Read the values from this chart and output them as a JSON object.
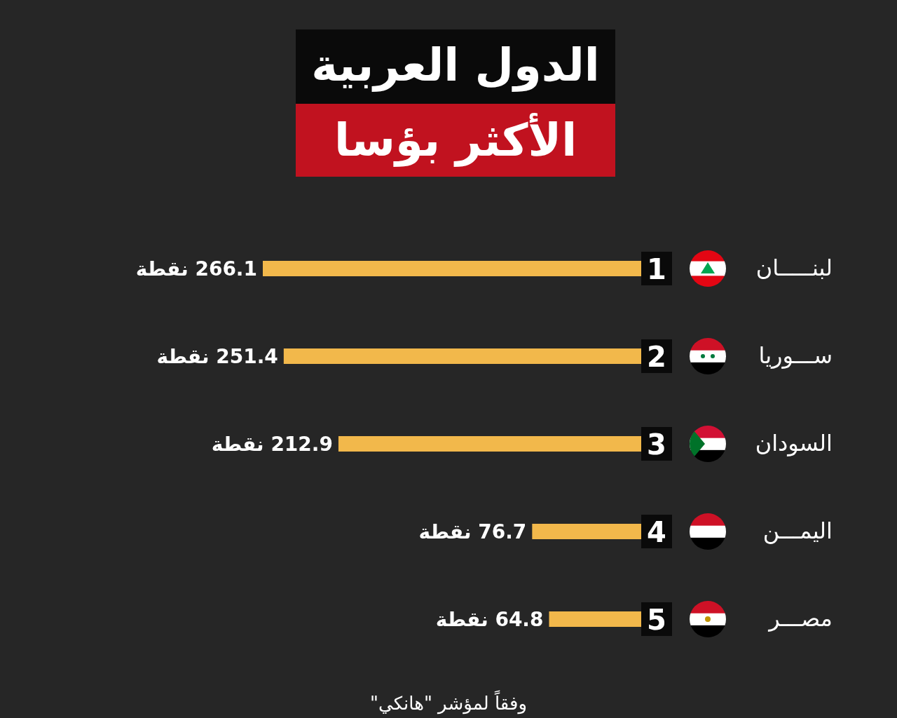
{
  "chart_data": {
    "type": "bar",
    "orientation": "horizontal",
    "title": "الدول العربية",
    "subtitle": "الأكثر بؤسا",
    "categories": [
      "لبنـــــان",
      "ســـوريا",
      "السودان",
      "اليمـــن",
      "مصـــر"
    ],
    "values": [
      266.1,
      251.4,
      212.9,
      76.7,
      64.8
    ],
    "value_labels": [
      "266.1 نقطة",
      "251.4 نقطة",
      "212.9 نقطة",
      "76.7 نقطة",
      "64.8 نقطة"
    ],
    "color": "#f2b84b",
    "annotations": [
      "1",
      "2",
      "3",
      "4",
      "5",
      "وفقاً لمؤشر \"هانكي\""
    ]
  }
}
